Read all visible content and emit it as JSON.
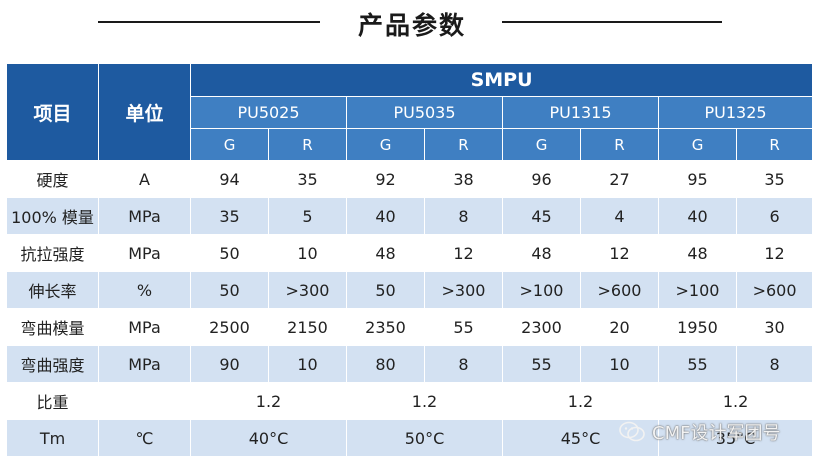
{
  "page_title": "产品参数",
  "table": {
    "header": {
      "item_label": "项目",
      "unit_label": "单位",
      "group": "SMPU",
      "products": [
        "PU5025",
        "PU5035",
        "PU1315",
        "PU1325"
      ],
      "subcols": [
        "G",
        "R",
        "G",
        "R",
        "G",
        "R",
        "G",
        "R"
      ]
    },
    "rows": [
      {
        "name": "硬度",
        "unit": "A",
        "values": [
          "94",
          "35",
          "92",
          "38",
          "96",
          "27",
          "95",
          "35"
        ]
      },
      {
        "name": "100% 模量",
        "unit": "MPa",
        "values": [
          "35",
          "5",
          "40",
          "8",
          "45",
          "4",
          "40",
          "6"
        ]
      },
      {
        "name": "抗拉强度",
        "unit": "MPa",
        "values": [
          "50",
          "10",
          "48",
          "12",
          "48",
          "12",
          "48",
          "12"
        ]
      },
      {
        "name": "伸长率",
        "unit": "%",
        "values": [
          "50",
          ">300",
          "50",
          ">300",
          ">100",
          ">600",
          ">100",
          ">600"
        ]
      },
      {
        "name": "弯曲模量",
        "unit": "MPa",
        "values": [
          "2500",
          "2150",
          "2350",
          "55",
          "2300",
          "20",
          "1950",
          "30"
        ]
      },
      {
        "name": "弯曲强度",
        "unit": "MPa",
        "values": [
          "90",
          "10",
          "80",
          "8",
          "55",
          "10",
          "55",
          "8"
        ]
      }
    ],
    "density": {
      "name": "比重",
      "unit": "",
      "values": [
        "1.2",
        "1.2",
        "1.2",
        "1.2"
      ]
    },
    "tm": {
      "name": "Tm",
      "unit": "℃",
      "values": [
        "40°C",
        "50°C",
        "45°C",
        "35°C"
      ]
    }
  },
  "watermark": "CMF设计军团号",
  "colors": {
    "header": "#1e5aa0",
    "subheader": "#3f7fc2",
    "stripe": "#d3e1f2"
  }
}
